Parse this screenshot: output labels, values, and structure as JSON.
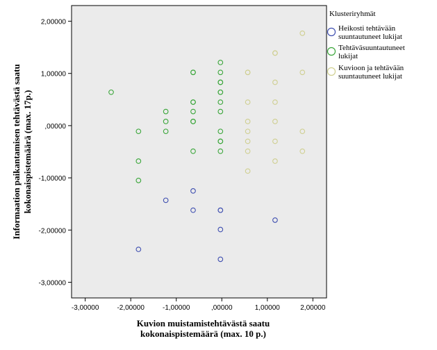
{
  "chart_data": {
    "type": "scatter",
    "xlabel": [
      "Kuvion muistamistehtävästä saatu",
      "kokonaispistemäärä (max. 10 p.)"
    ],
    "ylabel": [
      "Informaation paikantamisen tehtävästä saatu",
      "kokonaispistemäärä (max. 17p.)"
    ],
    "xlim": [
      -3.3,
      2.3
    ],
    "ylim": [
      -3.3,
      2.3
    ],
    "x_ticks": [
      {
        "value": -3,
        "label": "-3,00000"
      },
      {
        "value": -2,
        "label": "-2,00000"
      },
      {
        "value": -1,
        "label": "-1,00000"
      },
      {
        "value": 0,
        "label": ",00000"
      },
      {
        "value": 1,
        "label": "1,00000"
      },
      {
        "value": 2,
        "label": "2,00000"
      }
    ],
    "y_ticks": [
      {
        "value": 2,
        "label": "2,00000"
      },
      {
        "value": 1,
        "label": "1,00000"
      },
      {
        "value": 0,
        "label": ",00000"
      },
      {
        "value": -1,
        "label": "-1,00000"
      },
      {
        "value": -2,
        "label": "-2,00000"
      },
      {
        "value": -3,
        "label": "-3,00000"
      }
    ],
    "plot_background": "#ebebeb",
    "grid": false,
    "legend_title": "Klusteriryhmät",
    "legend_position": "right",
    "series": [
      {
        "name": [
          "Heikosti tehtävään",
          "suuntautuneet lukijat"
        ],
        "color": "#3f4fb0",
        "points": [
          [
            -1.83,
            -2.37
          ],
          [
            -1.23,
            -1.43
          ],
          [
            -0.63,
            -1.25
          ],
          [
            -0.63,
            -1.62
          ],
          [
            -0.03,
            -1.62
          ],
          [
            -0.03,
            -1.62
          ],
          [
            -0.03,
            -1.99
          ],
          [
            -0.03,
            -2.56
          ],
          [
            1.17,
            -1.81
          ]
        ]
      },
      {
        "name": [
          "Tehtäväsuuntautuneet",
          "lukijat"
        ],
        "color": "#3aa63a",
        "points": [
          [
            -2.43,
            0.64
          ],
          [
            -1.83,
            -0.11
          ],
          [
            -1.83,
            -0.68
          ],
          [
            -1.83,
            -1.05
          ],
          [
            -1.23,
            0.27
          ],
          [
            -1.23,
            0.08
          ],
          [
            -1.23,
            -0.11
          ],
          [
            -0.63,
            1.02
          ],
          [
            -0.63,
            1.02
          ],
          [
            -0.63,
            0.45
          ],
          [
            -0.63,
            0.45
          ],
          [
            -0.63,
            0.27
          ],
          [
            -0.63,
            0.08
          ],
          [
            -0.63,
            0.08
          ],
          [
            -0.63,
            -0.49
          ],
          [
            -0.03,
            1.21
          ],
          [
            -0.03,
            1.02
          ],
          [
            -0.03,
            0.83
          ],
          [
            -0.03,
            0.83
          ],
          [
            -0.03,
            0.64
          ],
          [
            -0.03,
            0.64
          ],
          [
            -0.03,
            0.45
          ],
          [
            -0.03,
            0.27
          ],
          [
            -0.03,
            -0.11
          ],
          [
            -0.03,
            -0.3
          ],
          [
            -0.03,
            -0.3
          ],
          [
            -0.03,
            -0.49
          ]
        ]
      },
      {
        "name": [
          "Kuvioon ja tehtävään",
          "suuntautuneet lukijat"
        ],
        "color": "#cfcf90",
        "points": [
          [
            0.57,
            1.02
          ],
          [
            0.57,
            1.02
          ],
          [
            0.57,
            0.45
          ],
          [
            0.57,
            0.08
          ],
          [
            0.57,
            -0.11
          ],
          [
            0.57,
            -0.3
          ],
          [
            0.57,
            -0.49
          ],
          [
            0.57,
            -0.87
          ],
          [
            1.17,
            1.39
          ],
          [
            1.17,
            1.39
          ],
          [
            1.17,
            0.83
          ],
          [
            1.17,
            0.45
          ],
          [
            1.17,
            0.08
          ],
          [
            1.17,
            -0.3
          ],
          [
            1.17,
            -0.68
          ],
          [
            1.77,
            1.77
          ],
          [
            1.77,
            1.02
          ],
          [
            1.77,
            -0.11
          ],
          [
            1.77,
            -0.49
          ]
        ]
      }
    ]
  }
}
